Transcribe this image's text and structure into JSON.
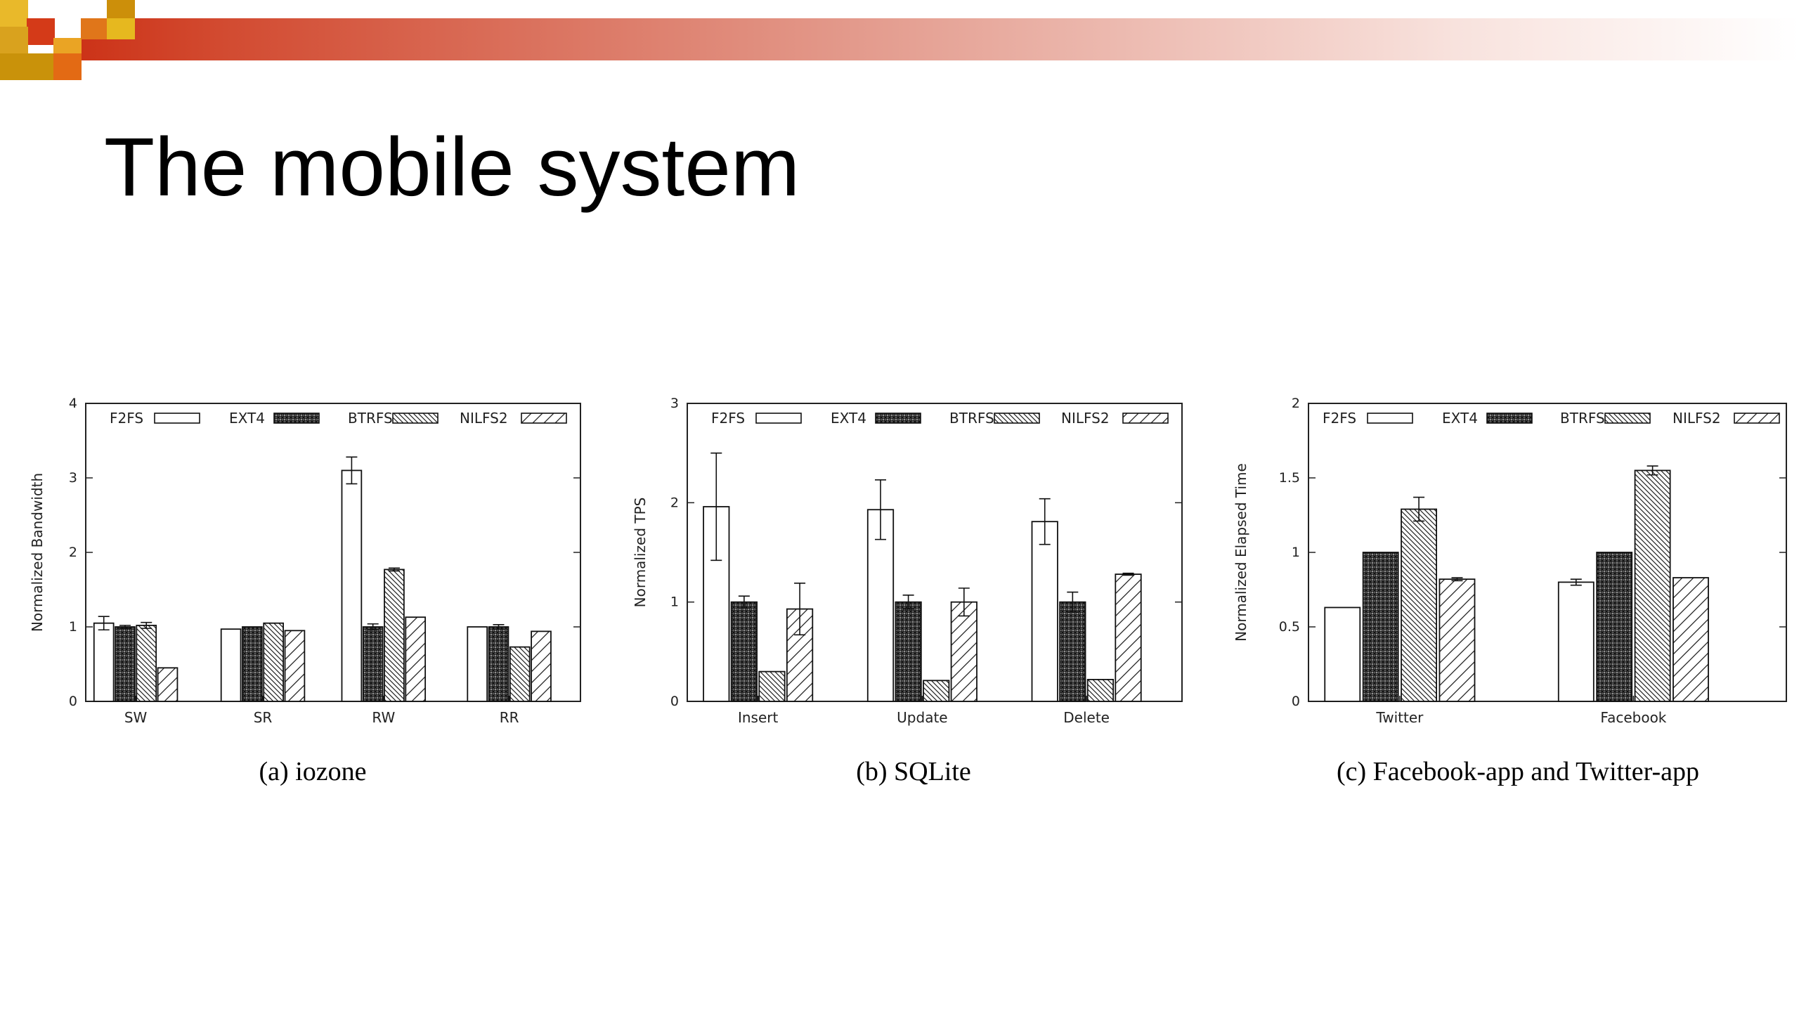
{
  "slide": {
    "title": "The mobile system",
    "colors": {
      "banner_red": "#d03a20",
      "banner_orange": "#e0761a",
      "banner_gold": "#c9920a",
      "banner_yellow": "#e6b81f"
    }
  },
  "legend_pattern_names": [
    "blank",
    "crosshatch",
    "fine-diagonal",
    "wide-diagonal"
  ],
  "chart_data": [
    {
      "type": "bar",
      "caption": "(a)  iozone",
      "ylabel": "Normalized Bandwidth",
      "ylim": [
        0,
        4
      ],
      "yticks": [
        "0",
        "1",
        "2",
        "3",
        "4"
      ],
      "categories": [
        "SW",
        "SR",
        "RW",
        "RR"
      ],
      "legend_position": "top",
      "grid": false,
      "series": [
        {
          "name": "F2FS",
          "values": [
            1.05,
            0.97,
            3.1,
            1.0
          ],
          "errors": [
            0.09,
            0.0,
            0.18,
            0.0
          ]
        },
        {
          "name": "EXT4",
          "values": [
            1.0,
            1.0,
            1.0,
            1.0
          ],
          "errors": [
            0.02,
            0.0,
            0.04,
            0.03
          ]
        },
        {
          "name": "BTRFS",
          "values": [
            1.02,
            1.05,
            1.77,
            0.73
          ],
          "errors": [
            0.04,
            0.0,
            0.02,
            0.0
          ]
        },
        {
          "name": "NILFS2",
          "values": [
            0.45,
            0.95,
            1.13,
            0.94
          ],
          "errors": [
            0.0,
            0.0,
            0.0,
            0.0
          ]
        }
      ]
    },
    {
      "type": "bar",
      "caption": "(b)  SQLite",
      "ylabel": "Normalized TPS",
      "ylim": [
        0,
        3
      ],
      "yticks": [
        "0",
        "1",
        "2",
        "3"
      ],
      "categories": [
        "Insert",
        "Update",
        "Delete"
      ],
      "legend_position": "top",
      "grid": false,
      "series": [
        {
          "name": "F2FS",
          "values": [
            1.96,
            1.93,
            1.81
          ],
          "errors": [
            0.54,
            0.3,
            0.23
          ]
        },
        {
          "name": "EXT4",
          "values": [
            1.0,
            1.0,
            1.0
          ],
          "errors": [
            0.06,
            0.07,
            0.1
          ]
        },
        {
          "name": "BTRFS",
          "values": [
            0.3,
            0.21,
            0.22
          ],
          "errors": [
            0.0,
            0.0,
            0.0
          ]
        },
        {
          "name": "NILFS2",
          "values": [
            0.93,
            1.0,
            1.28
          ],
          "errors": [
            0.26,
            0.14,
            0.01
          ]
        }
      ]
    },
    {
      "type": "bar",
      "caption": "(c)  Facebook-app and Twitter-app",
      "ylabel": "Normalized Elapsed Time",
      "ylim": [
        0,
        2
      ],
      "yticks": [
        "0",
        "0.5",
        "1",
        "1.5",
        "2"
      ],
      "categories": [
        "Twitter",
        "Facebook"
      ],
      "legend_position": "top",
      "grid": false,
      "series": [
        {
          "name": "F2FS",
          "values": [
            0.63,
            0.8
          ],
          "errors": [
            0.0,
            0.02
          ]
        },
        {
          "name": "EXT4",
          "values": [
            1.0,
            1.0
          ],
          "errors": [
            0.0,
            0.0
          ]
        },
        {
          "name": "BTRFS",
          "values": [
            1.29,
            1.55
          ],
          "errors": [
            0.08,
            0.03
          ]
        },
        {
          "name": "NILFS2",
          "values": [
            0.82,
            0.83
          ],
          "errors": [
            0.01,
            0.0
          ]
        }
      ]
    }
  ]
}
